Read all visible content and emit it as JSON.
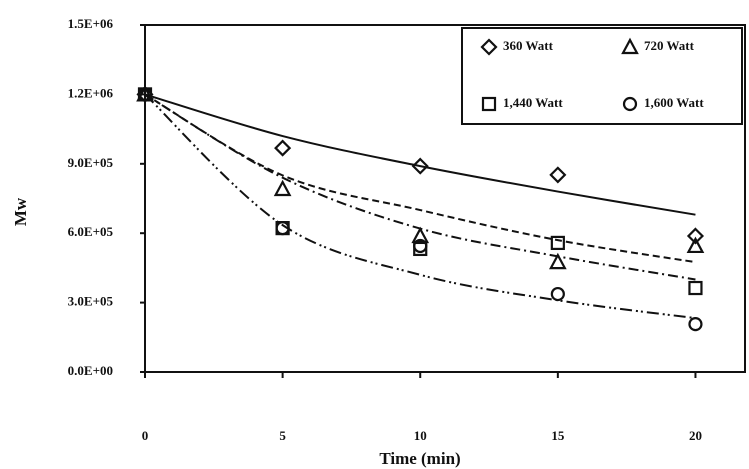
{
  "chart_data": {
    "type": "scatter",
    "x_label": "Time (min)",
    "y_label": "Mw",
    "x": [
      0,
      5,
      10,
      15,
      20
    ],
    "xlim": [
      0,
      21.8
    ],
    "xticks": [
      0,
      5,
      10,
      15,
      20
    ],
    "ylim": [
      0,
      1500000
    ],
    "yticks": [
      {
        "value": 0,
        "label": "0.0E+00"
      },
      {
        "value": 300000,
        "label": "3.0E+05"
      },
      {
        "value": 600000,
        "label": "6.0E+05"
      },
      {
        "value": 900000,
        "label": "9.0E+05"
      },
      {
        "value": 1200000,
        "label": "1.2E+06"
      },
      {
        "value": 1500000,
        "label": "1.5E+06"
      }
    ],
    "legend": "top-right",
    "series": [
      {
        "name": "360 Watt",
        "color": "#111111",
        "marker": "diamond",
        "dash": "none",
        "values": [
          1200000,
          968000,
          890000,
          852000,
          588000
        ],
        "fit_values": [
          1200000,
          1020000,
          890000,
          780000,
          680000
        ]
      },
      {
        "name": "720 Watt",
        "color": "#111111",
        "marker": "triangle",
        "dash": "7 4",
        "values": [
          1200000,
          791000,
          588000,
          475000,
          545000
        ],
        "fit_values": [
          1200000,
          850000,
          700000,
          570000,
          475000
        ]
      },
      {
        "name": "1,440 Watt",
        "color": "#111111",
        "marker": "square",
        "dash": "10 4 2 4",
        "values": [
          1200000,
          622000,
          532000,
          558000,
          363000
        ],
        "fit_values": [
          1200000,
          840000,
          620000,
          500000,
          400000
        ]
      },
      {
        "name": "1,600 Watt",
        "color": "#111111",
        "marker": "circle",
        "dash": "12 4 2 3 2 4",
        "values": [
          1200000,
          622000,
          545000,
          337000,
          207000
        ],
        "fit_values": [
          1200000,
          635000,
          420000,
          310000,
          233000
        ]
      }
    ]
  }
}
